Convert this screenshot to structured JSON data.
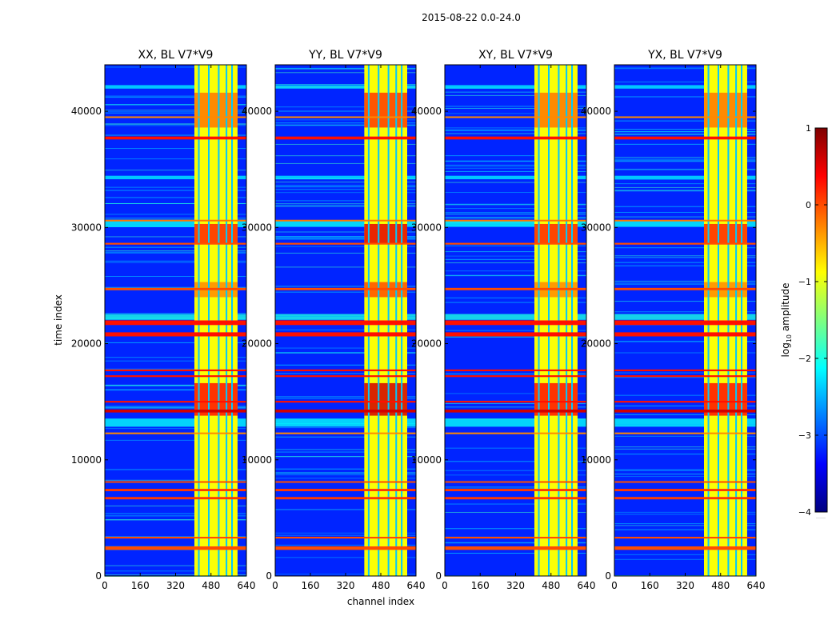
{
  "figure": {
    "suptitle": "2015-08-22 0.0-24.0",
    "ylabel": "time index",
    "xlabel": "channel index",
    "colorbar_label_base": "log",
    "colorbar_label_sub": "10",
    "colorbar_label_rest": " amplitude",
    "colorbar_extra_text": "……"
  },
  "colors": {
    "background": "#ffffff",
    "axis": "#000000",
    "colormap": [
      "#00007f",
      "#0000ff",
      "#007fff",
      "#00ffff",
      "#7fff7f",
      "#ffff00",
      "#ff7f00",
      "#ff0000",
      "#7f0000"
    ]
  },
  "chart_data": {
    "type": "heatmap",
    "colormap": "jet",
    "color_scale": "log10 amplitude",
    "clim": [
      -4,
      1
    ],
    "colorbar_ticks": [
      -4,
      -3,
      -2,
      -1,
      0,
      1
    ],
    "colorbar_tick_labels": [
      "−4",
      "−3",
      "−2",
      "−1",
      "0",
      "1"
    ],
    "xlim": [
      0,
      640
    ],
    "ylim": [
      0,
      44000
    ],
    "x_ticks": [
      0,
      160,
      320,
      480,
      640
    ],
    "x_tick_labels": [
      "0",
      "160",
      "320",
      "480",
      "640"
    ],
    "y_ticks": [
      0,
      10000,
      20000,
      30000,
      40000
    ],
    "y_tick_labels": [
      "0",
      "10000",
      "20000",
      "30000",
      "40000"
    ],
    "panels": [
      {
        "title": "XX, BL V7*V9",
        "pol": "XX"
      },
      {
        "title": "YY, BL V7*V9",
        "pol": "YY"
      },
      {
        "title": "XY, BL V7*V9",
        "pol": "XY"
      },
      {
        "title": "YX, BL V7*V9",
        "pol": "YX"
      }
    ],
    "background_level": -3.2,
    "bright_channel_band": [
      405,
      600
    ],
    "band_level": -0.9,
    "band_gap_channels": [
      425,
      470,
      515,
      550,
      575
    ],
    "rfi_rows": [
      {
        "t": 2400,
        "w": 300,
        "level": 0
      },
      {
        "t": 3300,
        "w": 150,
        "level": 0
      },
      {
        "t": 6700,
        "w": 200,
        "level": 0.1
      },
      {
        "t": 7400,
        "w": 200,
        "level": 0.1
      },
      {
        "t": 8100,
        "w": 120,
        "level": 0
      },
      {
        "t": 12300,
        "w": 100,
        "level": -0.3
      },
      {
        "t": 14200,
        "w": 250,
        "level": 0.6
      },
      {
        "t": 15000,
        "w": 150,
        "level": 0.3
      },
      {
        "t": 17200,
        "w": 150,
        "level": 0.3
      },
      {
        "t": 17700,
        "w": 150,
        "level": 0.3
      },
      {
        "t": 20800,
        "w": 350,
        "level": 0.3
      },
      {
        "t": 21800,
        "w": 400,
        "level": 0.3
      },
      {
        "t": 24700,
        "w": 200,
        "level": 0
      },
      {
        "t": 28600,
        "w": 150,
        "level": 0
      },
      {
        "t": 30600,
        "w": 120,
        "level": -0.2
      },
      {
        "t": 37700,
        "w": 250,
        "level": 0.3
      },
      {
        "t": 39500,
        "w": 120,
        "level": -0.3
      }
    ],
    "cyan_rows": [
      {
        "t": 13200,
        "w": 700,
        "level": -2.1
      },
      {
        "t": 22300,
        "w": 500,
        "level": -2.0
      },
      {
        "t": 30300,
        "w": 500,
        "level": -2.1
      },
      {
        "t": 34300,
        "w": 300,
        "level": -2.2
      },
      {
        "t": 42100,
        "w": 300,
        "level": -2.2
      }
    ],
    "hot_blocks": [
      {
        "t0": 13800,
        "t1": 16600,
        "level": 0.3
      },
      {
        "t0": 24000,
        "t1": 25300,
        "level": -0.3
      },
      {
        "t0": 28600,
        "t1": 30300,
        "level": 0.2
      },
      {
        "t0": 38600,
        "t1": 41600,
        "level": -0.2
      }
    ]
  }
}
